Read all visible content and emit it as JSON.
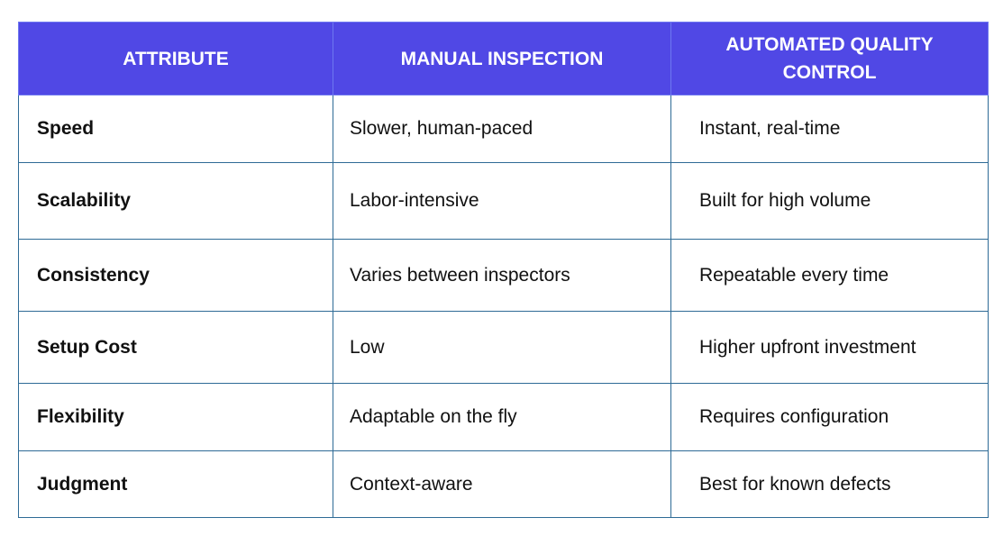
{
  "theme": {
    "header_bg": "#5048e5",
    "header_text": "#ffffff",
    "border": "#2e6b96"
  },
  "table": {
    "headers": [
      "ATTRIBUTE",
      "MANUAL INSPECTION",
      "AUTOMATED QUALITY CONTROL"
    ],
    "rows": [
      [
        "Speed",
        "Slower, human-paced",
        "Instant, real-time"
      ],
      [
        "Scalability",
        "Labor-intensive",
        "Built for high volume"
      ],
      [
        "Consistency",
        "Varies between inspectors",
        "Repeatable every time"
      ],
      [
        "Setup Cost",
        "Low",
        "Higher upfront investment"
      ],
      [
        "Flexibility",
        "Adaptable on the fly",
        "Requires configuration"
      ],
      [
        "Judgment",
        "Context-aware",
        "Best for known defects"
      ]
    ]
  }
}
